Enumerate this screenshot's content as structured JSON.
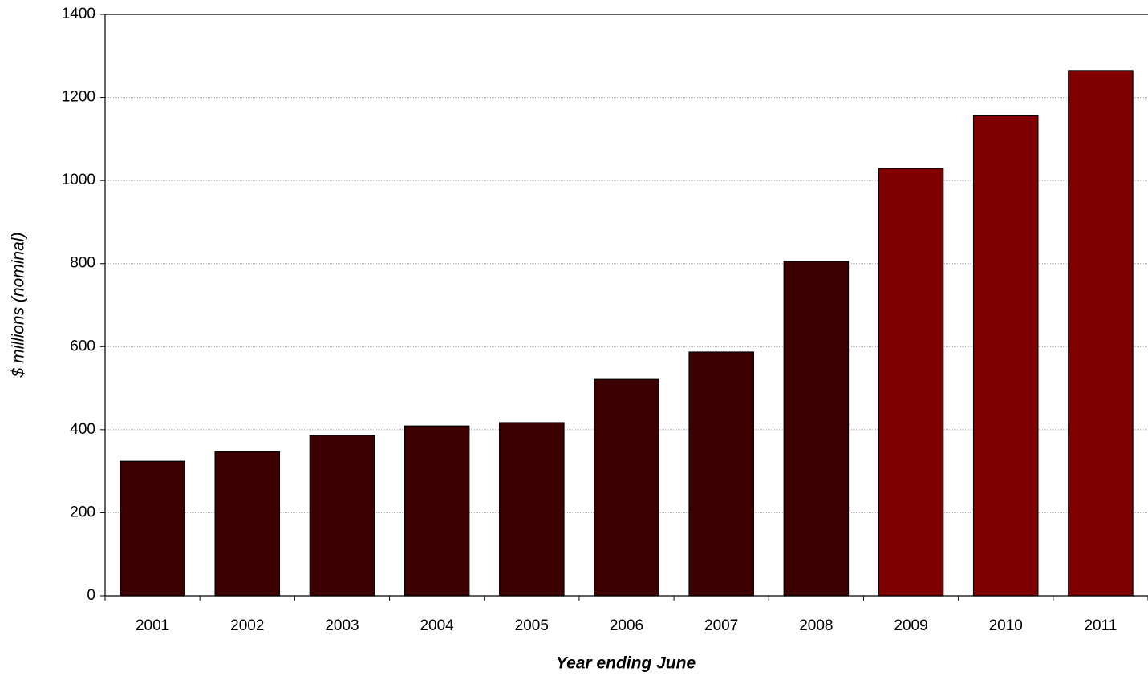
{
  "chart_data": {
    "type": "bar",
    "x_label": "Year ending June",
    "y_label": "$ millions (nominal)",
    "categories": [
      "2001",
      "2002",
      "2003",
      "2004",
      "2005",
      "2006",
      "2007",
      "2008",
      "2009",
      "2010",
      "2011"
    ],
    "values": [
      324,
      347,
      386,
      409,
      417,
      521,
      587,
      805,
      1029,
      1156,
      1265
    ],
    "colors": [
      "#3d0000",
      "#3d0000",
      "#3d0000",
      "#3d0000",
      "#3d0000",
      "#3d0000",
      "#3d0000",
      "#3d0000",
      "#800000",
      "#800000",
      "#800000"
    ],
    "ylim": [
      0,
      1400
    ],
    "yticks": [
      0,
      200,
      400,
      600,
      800,
      1000,
      1200,
      1400
    ],
    "grid": true
  }
}
